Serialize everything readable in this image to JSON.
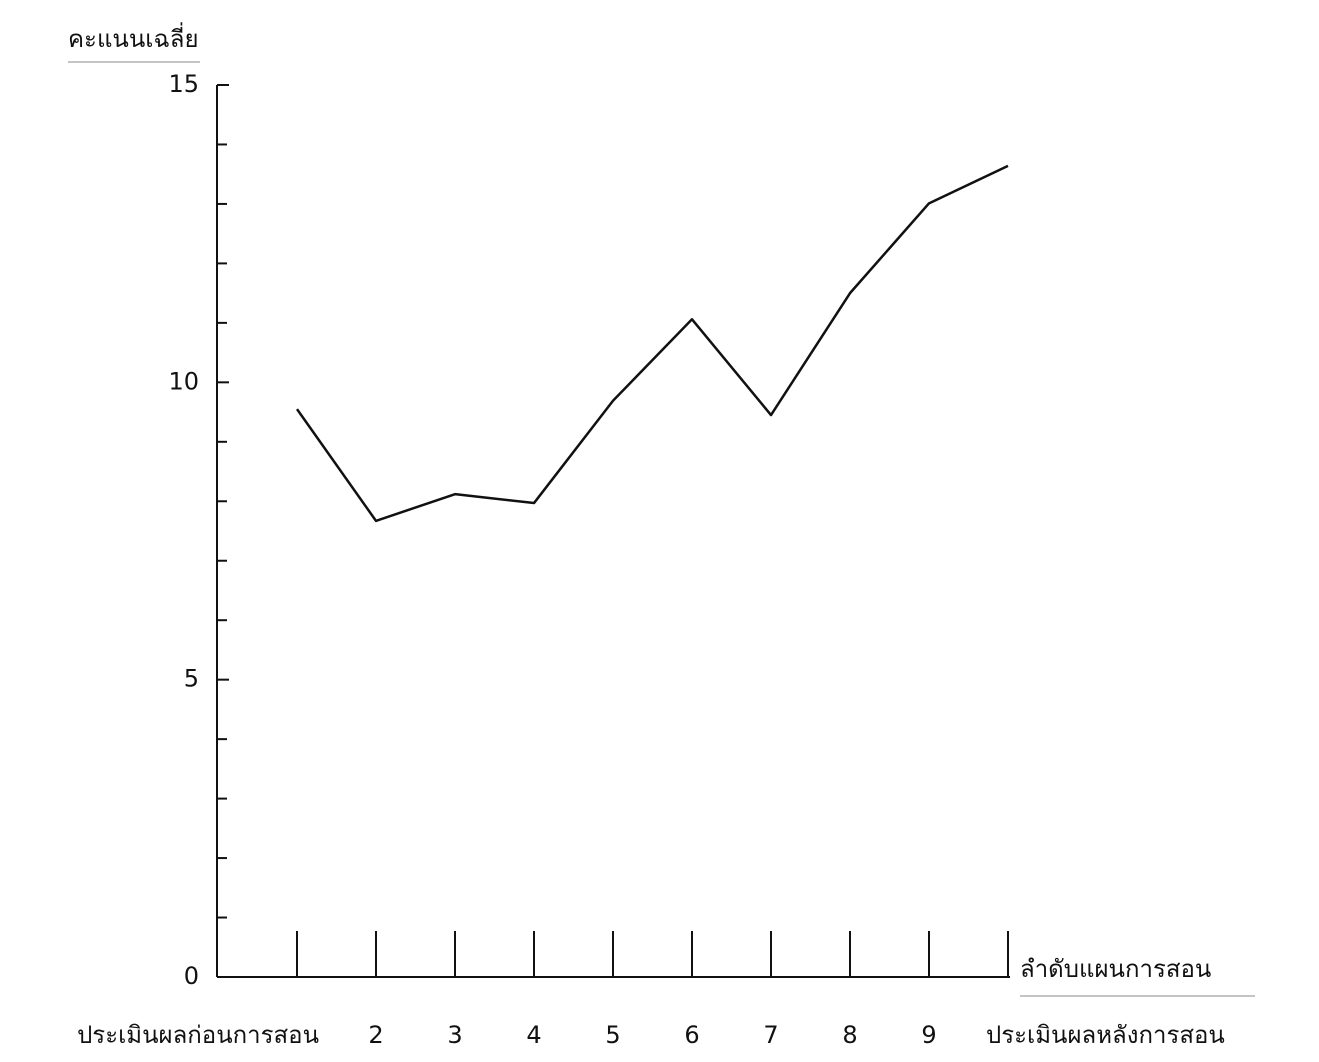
{
  "chart_data": {
    "type": "line",
    "ylabel": "คะแนนเฉลี่ย",
    "xlabel": "ลำดับแผนการสอน",
    "categories": [
      "ประเมินผลก่อนการสอน",
      "2",
      "3",
      "4",
      "5",
      "6",
      "7",
      "8",
      "9",
      "ประเมินผลหลังการสอน"
    ],
    "values": [
      9.55,
      7.67,
      8.12,
      7.97,
      9.69,
      11.06,
      9.45,
      11.5,
      13.01,
      13.64
    ],
    "color": "#111111",
    "ylim": [
      0,
      15
    ],
    "yticks": [
      0,
      5,
      10,
      15
    ],
    "yminorticks": [
      1,
      2,
      3,
      4,
      6,
      7,
      8,
      9,
      11,
      12,
      13,
      14
    ],
    "grid": false
  }
}
